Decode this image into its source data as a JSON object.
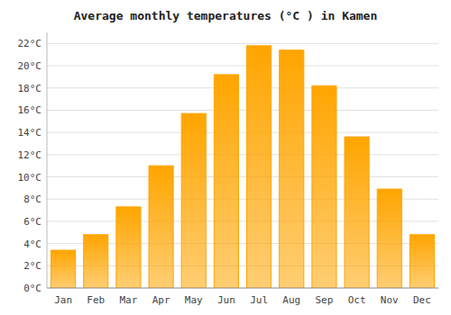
{
  "chart_data": {
    "type": "bar",
    "title": "Average monthly temperatures (°C ) in Kamen",
    "categories": [
      "Jan",
      "Feb",
      "Mar",
      "Apr",
      "May",
      "Jun",
      "Jul",
      "Aug",
      "Sep",
      "Oct",
      "Nov",
      "Dec"
    ],
    "values": [
      3.4,
      4.8,
      7.3,
      11.0,
      15.7,
      19.2,
      21.8,
      21.4,
      18.2,
      13.6,
      8.9,
      4.8
    ],
    "color": "#FFA500",
    "ylim": [
      0,
      23
    ],
    "yticks": [
      {
        "value": 0,
        "label": "0°C"
      },
      {
        "value": 2,
        "label": "2°C"
      },
      {
        "value": 4,
        "label": "4°C"
      },
      {
        "value": 6,
        "label": "6°C"
      },
      {
        "value": 8,
        "label": "8°C"
      },
      {
        "value": 10,
        "label": "10°C"
      },
      {
        "value": 12,
        "label": "12°C"
      },
      {
        "value": 14,
        "label": "14°C"
      },
      {
        "value": 16,
        "label": "16°C"
      },
      {
        "value": 18,
        "label": "18°C"
      },
      {
        "value": 20,
        "label": "20°C"
      },
      {
        "value": 22,
        "label": "22°C"
      }
    ],
    "grid": true
  }
}
